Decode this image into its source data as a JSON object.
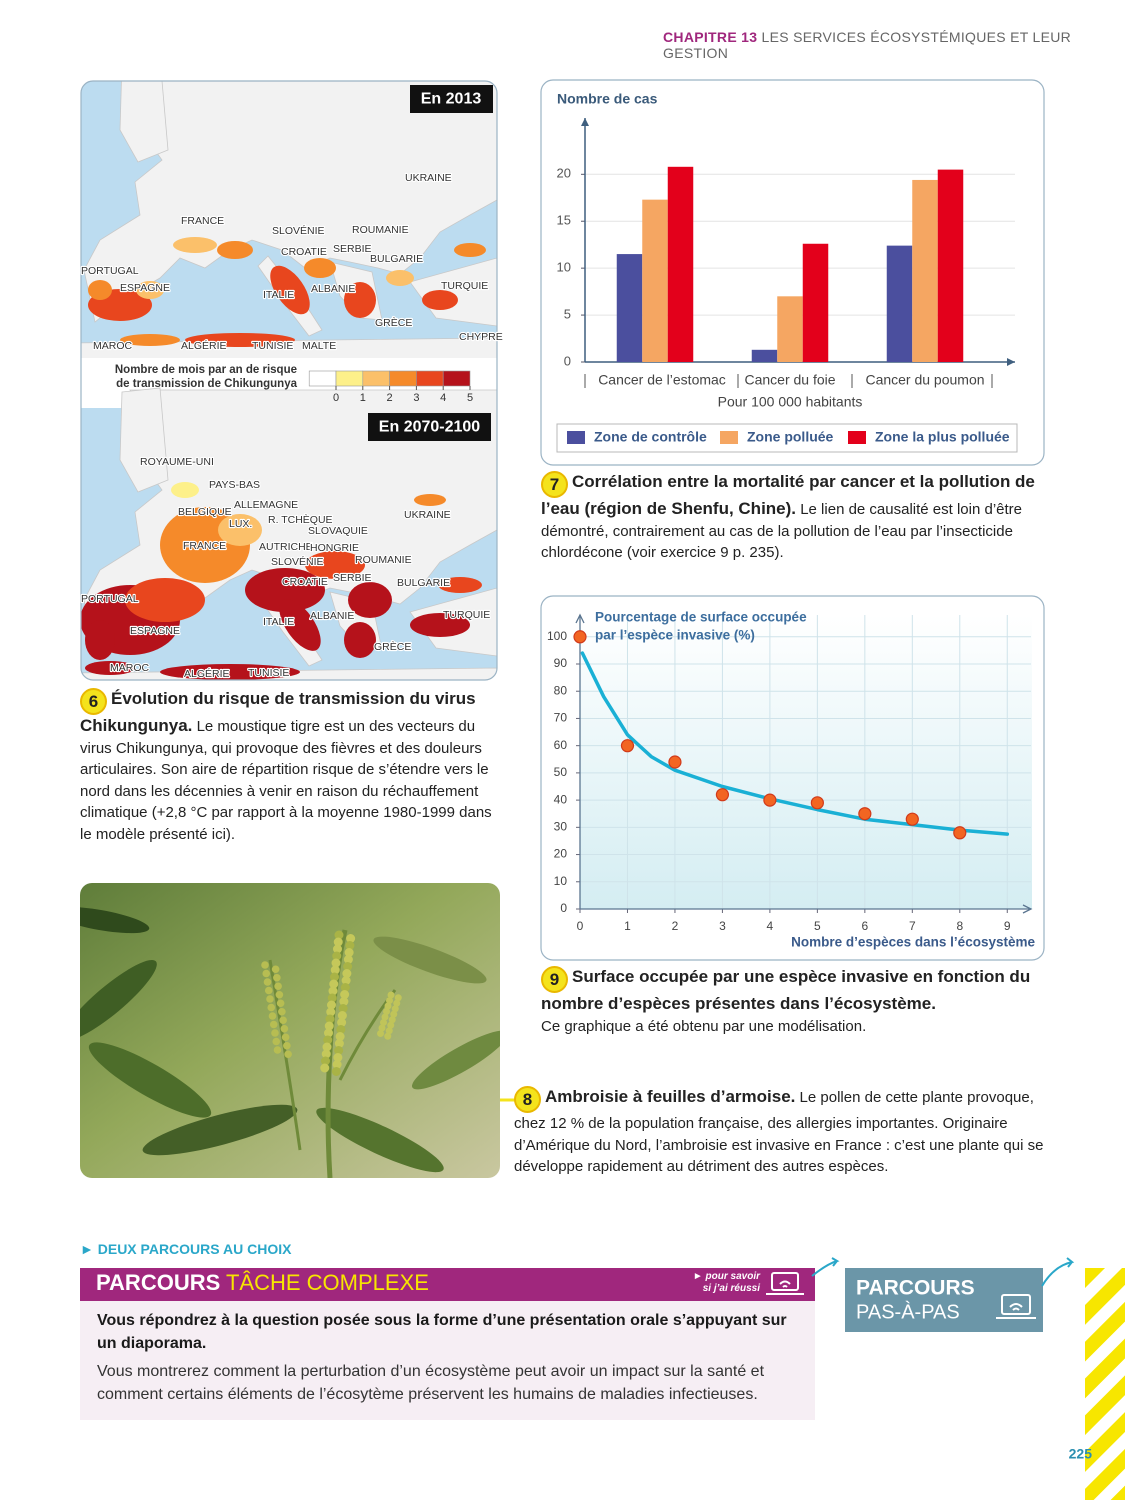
{
  "header": {
    "chapter": "CHAPITRE 13",
    "title": "LES SERVICES ÉCOSYSTÉMIQUES ET LEUR GESTION"
  },
  "doc6": {
    "map": {
      "title_2013": "En 2013",
      "title_2100": "En 2070-2100",
      "labels_2013": [
        "UKRAINE",
        "FRANCE",
        "SLOVÉNIE",
        "ROUMANIE",
        "CROATIE",
        "SERBIE",
        "BULGARIE",
        "PORTUGAL",
        "ESPAGNE",
        "ITALIE",
        "ALBANIE",
        "TURQUIE",
        "GRÈCE",
        "CHYPRE",
        "MAROC",
        "ALGÉRIE",
        "TUNISIE",
        "MALTE"
      ],
      "labels_2100": [
        "ROYAUME-UNI",
        "PAYS-BAS",
        "ALLEMAGNE",
        "BELGIQUE",
        "LUX.",
        "R. TCHÈQUE",
        "SLOVAQUIE",
        "UKRAINE",
        "FRANCE",
        "AUTRICHE",
        "HONGRIE",
        "SLOVÉNIE",
        "ROUMANIE",
        "CROATIE",
        "SERBIE",
        "BULGARIE",
        "PORTUGAL",
        "ESPAGNE",
        "ITALIE",
        "ALBANIE",
        "TURQUIE",
        "GRÈCE",
        "MAROC",
        "ALGÉRIE",
        "TUNISIE"
      ],
      "legend": {
        "title": [
          "Nombre de mois par an de risque",
          "de transmission de Chikungunya"
        ],
        "ticks": [
          0,
          1,
          2,
          3,
          4,
          5
        ],
        "colors": [
          "#ffffff",
          "#fdf08a",
          "#fbc06a",
          "#f58a2a",
          "#e8461e",
          "#b5121b"
        ]
      }
    },
    "number": "6",
    "heading": "Évolution du risque de transmission du virus Chikungunya.",
    "text": "Le moustique tigre est un des vecteurs du virus Chikungunya, qui provoque des fièvres et des douleurs articulaires. Son aire de répartition risque de s’étendre vers le nord dans les décennies à venir en raison du réchauffement climatique (+2,8 °C par rapport à la moyenne 1980-1999 dans le modèle présenté ici)."
  },
  "chart_data": [
    {
      "type": "bar",
      "ylabel": "Nombre de cas",
      "xlabel": "Pour 100 000 habitants",
      "categories": [
        "Cancer de l’estomac",
        "Cancer du foie",
        "Cancer du poumon"
      ],
      "series": [
        {
          "name": "Zone de contrôle",
          "color": "#4b4f9e",
          "values": [
            11.5,
            1.3,
            12.4
          ]
        },
        {
          "name": "Zone polluée",
          "color": "#f5a662",
          "values": [
            17.3,
            7,
            19.4
          ]
        },
        {
          "name": "Zone la plus polluée",
          "color": "#e3001b",
          "values": [
            20.8,
            12.6,
            20.5
          ]
        }
      ],
      "ylim": [
        0,
        26
      ],
      "yticks": [
        0,
        5,
        10,
        15,
        20
      ],
      "grid": true
    },
    {
      "type": "scatter",
      "ylabel": [
        "Pourcentage de surface occupée",
        "par l’espèce invasive (%)"
      ],
      "xlabel": "Nombre d’espèces dans l’écosystème",
      "series": [
        {
          "mark": "point",
          "color": "#f26522",
          "x": [
            0,
            1,
            2,
            3,
            4,
            5,
            6,
            7,
            8
          ],
          "values": [
            100,
            60,
            54,
            42,
            40,
            39,
            35,
            33,
            28
          ]
        },
        {
          "mark": "line",
          "color": "#1ab0d5",
          "x": [
            0.05,
            0.5,
            1,
            1.5,
            2,
            3,
            4,
            5,
            6,
            7,
            8,
            9
          ],
          "values": [
            94,
            78,
            64,
            56,
            51,
            45,
            40.5,
            36.5,
            33,
            31,
            29,
            27.5
          ]
        }
      ],
      "xlim": [
        0,
        9.5
      ],
      "ylim": [
        0,
        108
      ],
      "xticks": [
        0,
        1,
        2,
        3,
        4,
        5,
        6,
        7,
        8,
        9
      ],
      "yticks": [
        0,
        10,
        20,
        30,
        40,
        50,
        60,
        70,
        80,
        90,
        100
      ],
      "grid": true
    }
  ],
  "doc7": {
    "number": "7",
    "heading": "Corrélation entre la mortalité par cancer et la pollution de l’eau (région de Shenfu, Chine).",
    "text": "Le lien de causalité est loin d’être démontré, contrairement au cas de la pollution de l’eau par l’insecticide chlordécone (voir exercice 9 p. 235)."
  },
  "doc9": {
    "number": "9",
    "heading": "Surface occupée par une espèce invasive en fonction du nombre d’espèces présentes dans l’écosystème.",
    "text": "Ce graphique a été obtenu par une modélisation."
  },
  "doc8": {
    "number": "8",
    "heading": "Ambroisie à feuilles d’armoise.",
    "text": "Le pollen de cette plante provoque, chez 12 % de la population française, des allergies importantes. Originaire d’Amérique du Nord, l’ambroisie est invasive en France : c’est une plante qui se développe rapidement au détriment des autres espèces."
  },
  "footer": {
    "intro": "DEUX PARCOURS AU CHOIX",
    "complex": {
      "label": "PARCOURS",
      "title": "TÂCHE COMPLEXE",
      "help": [
        "pour savoir",
        "si j’ai réussi"
      ],
      "task": "Vous répondrez à la question posée sous la forme d’une présentation orale s’appuyant sur un diaporama.",
      "text": "Vous montrerez comment la perturbation d’un écosystème peut avoir un impact sur la santé et comment certains éléments de l’écosytème préservent les humains de maladies infectieuses."
    },
    "guided": {
      "label": "PARCOURS",
      "title": "PAS-À-PAS"
    },
    "page": "225"
  }
}
